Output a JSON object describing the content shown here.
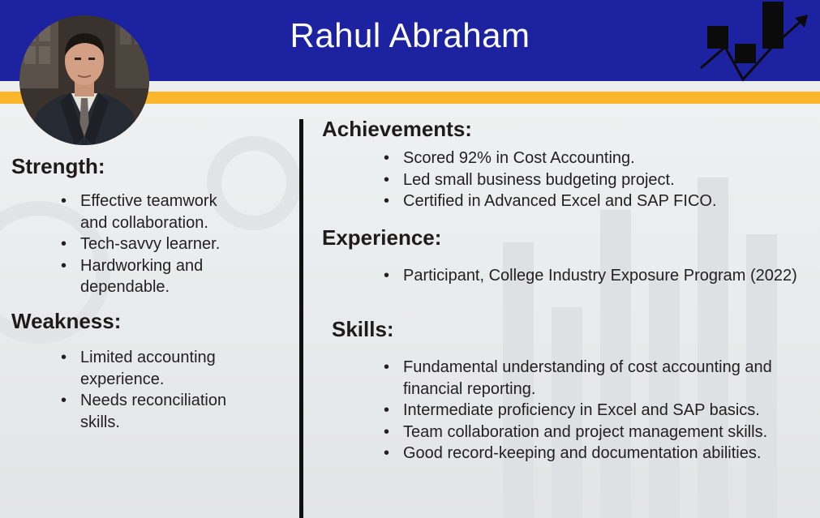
{
  "header": {
    "name": "Rahul Abraham",
    "photo_icon": "portrait-photo",
    "chart_icon": "growth-chart-icon"
  },
  "colors": {
    "banner": "#1d23a0",
    "stripe": "#fbb62c",
    "text": "#231f20"
  },
  "strength": {
    "heading": "Strength:",
    "items": [
      "Effective teamwork and collaboration.",
      "Tech-savvy learner.",
      "Hardworking and dependable."
    ]
  },
  "weakness": {
    "heading": "Weakness:",
    "items": [
      "Limited accounting experience.",
      "Needs reconciliation skills."
    ]
  },
  "achievements": {
    "heading": "Achievements:",
    "items": [
      "Scored 92% in Cost Accounting.",
      "Led small business budgeting project.",
      "Certified in Advanced Excel and SAP FICO."
    ]
  },
  "experience": {
    "heading": "Experience:",
    "items": [
      "Participant, College Industry Exposure Program (2022)"
    ]
  },
  "skills": {
    "heading": "Skills:",
    "items": [
      "Fundamental understanding of cost accounting and financial reporting.",
      "Intermediate proficiency in Excel and SAP basics.",
      "Team collaboration and project management skills.",
      "Good record-keeping and documentation abilities."
    ]
  }
}
